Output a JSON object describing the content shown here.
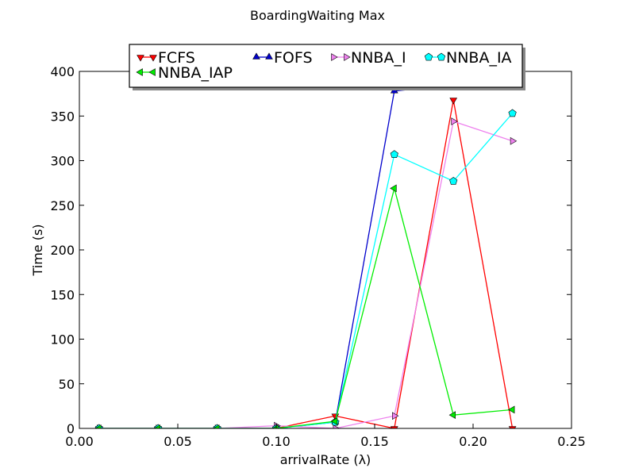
{
  "chart_data": {
    "type": "line",
    "title": "BoardingWaiting Max",
    "xlabel": "arrivalRate (λ)",
    "ylabel": "Time (s)",
    "xlim": [
      0.0,
      0.25
    ],
    "ylim": [
      0,
      400
    ],
    "xticks": [
      "0.00",
      "0.05",
      "0.10",
      "0.15",
      "0.20",
      "0.25"
    ],
    "yticks": [
      "0",
      "50",
      "100",
      "150",
      "200",
      "250",
      "300",
      "350",
      "400"
    ],
    "x": [
      0.01,
      0.04,
      0.07,
      0.1,
      0.13,
      0.16,
      0.19,
      0.22
    ],
    "grid": false,
    "legend_position": "top-center",
    "series": [
      {
        "name": "FCFS",
        "color": "#ff0000",
        "marker": "triangle-down",
        "values": [
          0,
          0,
          0,
          0,
          14,
          0,
          368,
          0
        ]
      },
      {
        "name": "FOFS",
        "color": "#0000cc",
        "marker": "triangle-up",
        "values": [
          0,
          0,
          0,
          0,
          7,
          378,
          385,
          385
        ]
      },
      {
        "name": "NNBA_I",
        "color": "#ee82ee",
        "marker": "triangle-right",
        "values": [
          0,
          0,
          0,
          3,
          0,
          14,
          344,
          322
        ]
      },
      {
        "name": "NNBA_IA",
        "color": "#00ffff",
        "marker": "pentagon",
        "values": [
          0,
          0,
          0,
          0,
          7,
          307,
          277,
          353
        ]
      },
      {
        "name": "NNBA_IAP",
        "color": "#00ee00",
        "marker": "triangle-left",
        "values": [
          0,
          0,
          0,
          0,
          8,
          269,
          15,
          21
        ]
      }
    ]
  }
}
